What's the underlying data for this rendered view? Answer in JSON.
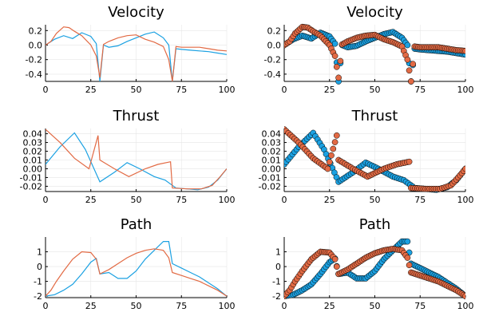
{
  "colors": {
    "series1": "#1ba1e2",
    "series2": "#e26a44"
  },
  "chart_data": [
    {
      "type": "line",
      "title": "Velocity",
      "xlim": [
        0,
        100
      ],
      "ylim": [
        -0.5,
        0.28
      ],
      "xticks": [
        0,
        25,
        50,
        75,
        100
      ],
      "yticks": [
        0.2,
        0.0,
        -0.2,
        -0.4
      ],
      "ytick_labels": [
        "0.2",
        "0.0",
        "-0.2",
        "-0.4"
      ],
      "grid": true,
      "series": [
        {
          "x": [
            0,
            5,
            10,
            15,
            20,
            25,
            28,
            30,
            32,
            35,
            40,
            45,
            50,
            55,
            60,
            65,
            68,
            70,
            72,
            75,
            80,
            85,
            90,
            95,
            100
          ],
          "y": [
            0.0,
            0.08,
            0.13,
            0.09,
            0.17,
            0.12,
            0.02,
            -0.5,
            0.0,
            -0.03,
            -0.01,
            0.05,
            0.1,
            0.15,
            0.18,
            0.1,
            0.0,
            -0.5,
            -0.05,
            -0.06,
            -0.07,
            -0.08,
            -0.09,
            -0.11,
            -0.13
          ]
        },
        {
          "x": [
            0,
            3,
            6,
            10,
            13,
            16,
            20,
            25,
            28,
            30,
            32,
            35,
            40,
            45,
            50,
            55,
            60,
            65,
            68,
            70,
            72,
            75,
            80,
            85,
            90,
            95,
            100
          ],
          "y": [
            0.0,
            0.05,
            0.16,
            0.25,
            0.24,
            0.19,
            0.13,
            0.0,
            -0.15,
            -0.45,
            0.01,
            0.05,
            0.1,
            0.13,
            0.14,
            0.08,
            0.04,
            -0.02,
            -0.2,
            -0.5,
            -0.02,
            -0.03,
            -0.03,
            -0.03,
            -0.05,
            -0.07,
            -0.08
          ]
        }
      ]
    },
    {
      "type": "scatter",
      "title": "Velocity",
      "xlim": [
        0,
        100
      ],
      "ylim": [
        -0.5,
        0.28
      ],
      "xticks": [
        0,
        25,
        50,
        75,
        100
      ],
      "yticks": [
        0.2,
        0.0,
        -0.2,
        -0.4
      ],
      "ytick_labels": [
        "0.2",
        "0.0",
        "-0.2",
        "-0.4"
      ],
      "grid": true,
      "series": [
        {
          "x": [
            0,
            5,
            10,
            15,
            20,
            25,
            28,
            30,
            32,
            35,
            40,
            45,
            50,
            55,
            60,
            65,
            68,
            70,
            72,
            75,
            80,
            85,
            90,
            95,
            100
          ],
          "y": [
            0.0,
            0.08,
            0.13,
            0.09,
            0.17,
            0.12,
            0.02,
            -0.5,
            0.0,
            -0.03,
            -0.01,
            0.05,
            0.1,
            0.15,
            0.18,
            0.1,
            0.0,
            -0.5,
            -0.05,
            -0.06,
            -0.07,
            -0.08,
            -0.09,
            -0.11,
            -0.13
          ]
        },
        {
          "x": [
            0,
            3,
            6,
            10,
            13,
            16,
            20,
            25,
            28,
            30,
            32,
            35,
            40,
            45,
            50,
            55,
            60,
            65,
            68,
            70,
            72,
            75,
            80,
            85,
            90,
            95,
            100
          ],
          "y": [
            0.0,
            0.05,
            0.16,
            0.25,
            0.24,
            0.19,
            0.13,
            0.0,
            -0.15,
            -0.45,
            0.01,
            0.05,
            0.1,
            0.13,
            0.14,
            0.08,
            0.04,
            -0.02,
            -0.2,
            -0.5,
            -0.02,
            -0.03,
            -0.03,
            -0.03,
            -0.05,
            -0.07,
            -0.08
          ]
        }
      ]
    },
    {
      "type": "line",
      "title": "Thrust",
      "xlim": [
        0,
        100
      ],
      "ylim": [
        -0.026,
        0.046
      ],
      "xticks": [
        0,
        25,
        50,
        75,
        100
      ],
      "yticks": [
        0.04,
        0.03,
        0.02,
        0.01,
        0.0,
        -0.01,
        -0.02
      ],
      "ytick_labels": [
        "0.04",
        "0.03",
        "0.02",
        "0.01",
        "0.00",
        "-0.01",
        "-0.02"
      ],
      "grid": true,
      "series": [
        {
          "x": [
            0,
            8,
            16,
            22,
            30,
            38,
            45,
            52,
            60,
            66,
            72,
            78,
            84,
            90,
            95,
            100
          ],
          "y": [
            0.005,
            0.025,
            0.041,
            0.022,
            -0.015,
            -0.004,
            0.007,
            0.0,
            -0.009,
            -0.013,
            -0.022,
            -0.023,
            -0.024,
            -0.021,
            -0.013,
            0.0
          ]
        },
        {
          "x": [
            0,
            8,
            16,
            24,
            29,
            30,
            38,
            46,
            55,
            62,
            69,
            70,
            78,
            86,
            92,
            96,
            100
          ],
          "y": [
            0.045,
            0.03,
            0.012,
            0.0,
            0.038,
            0.01,
            0.0,
            -0.009,
            0.0,
            0.005,
            0.008,
            -0.022,
            -0.023,
            -0.023,
            -0.019,
            -0.01,
            0.0
          ]
        }
      ]
    },
    {
      "type": "scatter",
      "title": "Thrust",
      "xlim": [
        0,
        100
      ],
      "ylim": [
        -0.026,
        0.046
      ],
      "xticks": [
        0,
        25,
        50,
        75,
        100
      ],
      "yticks": [
        0.04,
        0.03,
        0.02,
        0.01,
        0.0,
        -0.01,
        -0.02
      ],
      "ytick_labels": [
        "0.04",
        "0.03",
        "0.02",
        "0.01",
        "0.00",
        "-0.01",
        "-0.02"
      ],
      "grid": true,
      "series": [
        {
          "x": [
            0,
            8,
            16,
            22,
            30,
            38,
            45,
            52,
            60,
            66,
            72,
            78,
            84,
            90,
            95,
            100
          ],
          "y": [
            0.005,
            0.025,
            0.041,
            0.022,
            -0.015,
            -0.004,
            0.007,
            0.0,
            -0.009,
            -0.013,
            -0.022,
            -0.023,
            -0.024,
            -0.021,
            -0.013,
            0.0
          ]
        },
        {
          "x": [
            0,
            8,
            16,
            24,
            29,
            30,
            38,
            46,
            55,
            62,
            69,
            70,
            78,
            86,
            92,
            96,
            100
          ],
          "y": [
            0.045,
            0.03,
            0.012,
            0.0,
            0.038,
            0.01,
            0.0,
            -0.009,
            0.0,
            0.005,
            0.008,
            -0.022,
            -0.023,
            -0.023,
            -0.019,
            -0.01,
            0.0
          ]
        }
      ]
    },
    {
      "type": "line",
      "title": "Path",
      "xlim": [
        0,
        100
      ],
      "ylim": [
        -2.1,
        2.0
      ],
      "xticks": [
        0,
        25,
        50,
        75,
        100
      ],
      "yticks": [
        1,
        0,
        -1,
        -2
      ],
      "ytick_labels": [
        "1",
        "0",
        "-1",
        "-2"
      ],
      "grid": true,
      "series": [
        {
          "x": [
            0,
            5,
            10,
            15,
            20,
            25,
            28,
            30,
            35,
            40,
            45,
            50,
            55,
            60,
            65,
            68,
            70,
            75,
            80,
            85,
            90,
            95,
            100
          ],
          "y": [
            -2.0,
            -1.9,
            -1.6,
            -1.2,
            -0.5,
            0.3,
            0.55,
            -0.5,
            -0.4,
            -0.8,
            -0.8,
            -0.3,
            0.5,
            1.1,
            1.7,
            1.7,
            0.2,
            -0.1,
            -0.4,
            -0.7,
            -1.1,
            -1.5,
            -2.0
          ]
        },
        {
          "x": [
            0,
            3,
            6,
            10,
            15,
            20,
            25,
            28,
            30,
            35,
            40,
            45,
            50,
            55,
            60,
            65,
            68,
            70,
            75,
            80,
            85,
            90,
            95,
            100
          ],
          "y": [
            -2.0,
            -1.6,
            -1.0,
            -0.3,
            0.5,
            1.0,
            0.95,
            0.5,
            -0.5,
            -0.2,
            0.2,
            0.6,
            0.9,
            1.1,
            1.2,
            1.1,
            0.6,
            -0.4,
            -0.6,
            -0.8,
            -1.0,
            -1.3,
            -1.6,
            -2.0
          ]
        }
      ]
    },
    {
      "type": "scatter",
      "title": "Path",
      "xlim": [
        0,
        100
      ],
      "ylim": [
        -2.1,
        2.0
      ],
      "xticks": [
        0,
        25,
        50,
        75,
        100
      ],
      "yticks": [
        1,
        0,
        -1,
        -2
      ],
      "ytick_labels": [
        "1",
        "0",
        "-1",
        "-2"
      ],
      "grid": true,
      "series": [
        {
          "x": [
            0,
            5,
            10,
            15,
            20,
            25,
            28,
            30,
            35,
            40,
            45,
            50,
            55,
            60,
            65,
            68,
            70,
            75,
            80,
            85,
            90,
            95,
            100
          ],
          "y": [
            -2.0,
            -1.9,
            -1.6,
            -1.2,
            -0.5,
            0.3,
            0.55,
            -0.5,
            -0.4,
            -0.8,
            -0.8,
            -0.3,
            0.5,
            1.1,
            1.7,
            1.7,
            0.2,
            -0.1,
            -0.4,
            -0.7,
            -1.1,
            -1.5,
            -2.0
          ]
        },
        {
          "x": [
            0,
            3,
            6,
            10,
            15,
            20,
            25,
            28,
            30,
            35,
            40,
            45,
            50,
            55,
            60,
            65,
            68,
            70,
            75,
            80,
            85,
            90,
            95,
            100
          ],
          "y": [
            -2.0,
            -1.6,
            -1.0,
            -0.3,
            0.5,
            1.0,
            0.95,
            0.5,
            -0.5,
            -0.2,
            0.2,
            0.6,
            0.9,
            1.1,
            1.2,
            1.1,
            0.6,
            -0.4,
            -0.6,
            -0.8,
            -1.0,
            -1.3,
            -1.6,
            -2.0
          ]
        }
      ]
    }
  ]
}
